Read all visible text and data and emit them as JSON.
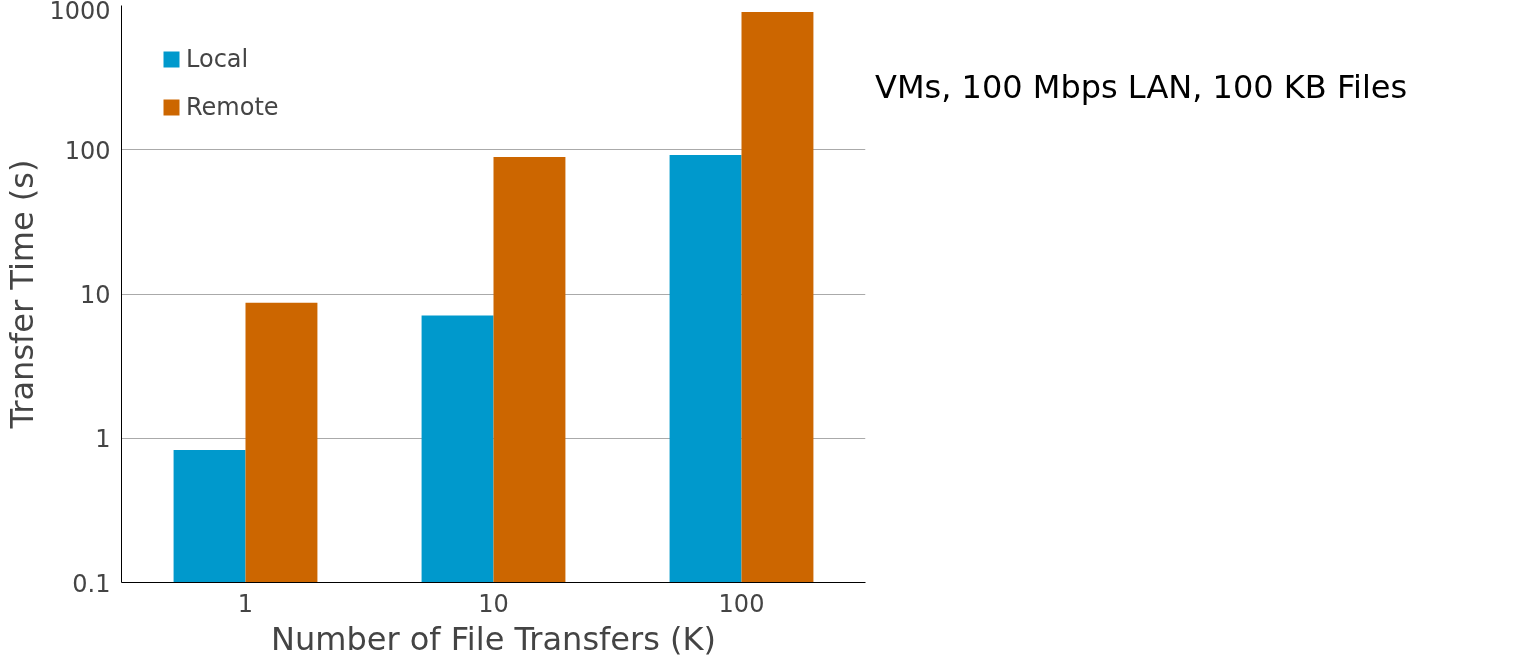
{
  "chart_data": {
    "type": "bar",
    "xlabel": "Number of File Transfers (K)",
    "ylabel": "Transfer Time (s)",
    "categories": [
      "1",
      "10",
      "100"
    ],
    "series": [
      {
        "name": "Local",
        "color": "#0099cc",
        "values": [
          0.83,
          7.1,
          92
        ]
      },
      {
        "name": "Remote",
        "color": "#cc6600",
        "values": [
          8.7,
          89,
          900
        ]
      }
    ],
    "log": true,
    "ylim": [
      0.1,
      1000
    ],
    "yticks": [
      0.1,
      1,
      10,
      100,
      1000
    ],
    "grid": "y",
    "legend": "top left",
    "annotations": [
      "VMs, 100 Mbps LAN, 100 KB Files"
    ]
  }
}
